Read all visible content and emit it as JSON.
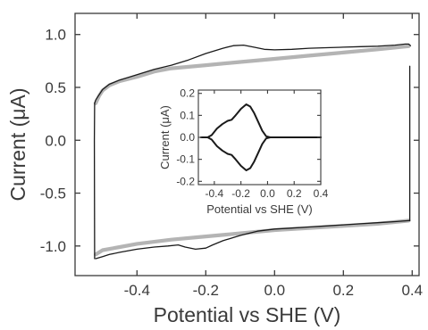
{
  "chart_data": [
    {
      "type": "line",
      "xlabel": "Potential vs SHE (V)",
      "ylabel": "Current (μA)",
      "xlim": [
        -0.58,
        0.42
      ],
      "ylim": [
        -1.28,
        1.2
      ],
      "xticks": [
        -0.4,
        -0.2,
        0.0,
        0.2,
        0.4
      ],
      "xtick_labels": [
        "-0.4",
        "-0.2",
        "0.0",
        "0.2",
        "0.4"
      ],
      "yticks": [
        -1.0,
        -0.5,
        0.0,
        0.5,
        1.0
      ],
      "ytick_labels": [
        "-1.0",
        "-0.5",
        "0.0",
        "0.5",
        "1.0"
      ],
      "grid": false,
      "series": [
        {
          "color": "#b4b4b4",
          "segments": [
            [
              [
                -0.52,
                0.35
              ],
              [
                -0.51,
                0.42
              ],
              [
                -0.5,
                0.47
              ],
              [
                -0.48,
                0.52
              ],
              [
                -0.45,
                0.56
              ],
              [
                -0.4,
                0.6
              ],
              [
                -0.35,
                0.65
              ],
              [
                -0.3,
                0.68
              ],
              [
                -0.2,
                0.71
              ],
              [
                -0.1,
                0.74
              ],
              [
                0.0,
                0.77
              ],
              [
                0.1,
                0.8
              ],
              [
                0.2,
                0.83
              ],
              [
                0.3,
                0.86
              ],
              [
                0.39,
                0.89
              ]
            ],
            [
              [
                0.39,
                -0.76
              ],
              [
                0.3,
                -0.79
              ],
              [
                0.2,
                -0.81
              ],
              [
                0.1,
                -0.83
              ],
              [
                0.0,
                -0.85
              ],
              [
                -0.1,
                -0.88
              ],
              [
                -0.2,
                -0.91
              ],
              [
                -0.3,
                -0.94
              ],
              [
                -0.4,
                -0.98
              ],
              [
                -0.45,
                -1.01
              ],
              [
                -0.5,
                -1.04
              ],
              [
                -0.52,
                -1.08
              ]
            ]
          ]
        },
        {
          "color": "#1a1a1a",
          "segments": [
            [
              [
                -0.523,
                0.35
              ],
              [
                -0.52,
                0.38
              ],
              [
                -0.51,
                0.43
              ],
              [
                -0.5,
                0.48
              ],
              [
                -0.48,
                0.53
              ],
              [
                -0.45,
                0.57
              ],
              [
                -0.4,
                0.62
              ],
              [
                -0.35,
                0.67
              ],
              [
                -0.3,
                0.71
              ],
              [
                -0.25,
                0.76
              ],
              [
                -0.2,
                0.82
              ],
              [
                -0.15,
                0.87
              ],
              [
                -0.12,
                0.895
              ],
              [
                -0.09,
                0.9
              ],
              [
                -0.06,
                0.88
              ],
              [
                -0.03,
                0.86
              ],
              [
                0.0,
                0.855
              ],
              [
                0.05,
                0.86
              ],
              [
                0.1,
                0.87
              ],
              [
                0.15,
                0.875
              ],
              [
                0.2,
                0.88
              ],
              [
                0.25,
                0.885
              ],
              [
                0.3,
                0.89
              ],
              [
                0.35,
                0.9
              ],
              [
                0.38,
                0.91
              ],
              [
                0.39,
                0.91
              ],
              [
                0.395,
                0.895
              ]
            ],
            [
              [
                0.393,
                -0.76
              ],
              [
                0.39,
                -0.76
              ],
              [
                0.35,
                -0.77
              ],
              [
                0.3,
                -0.78
              ],
              [
                0.25,
                -0.79
              ],
              [
                0.2,
                -0.8
              ],
              [
                0.15,
                -0.81
              ],
              [
                0.1,
                -0.82
              ],
              [
                0.05,
                -0.83
              ],
              [
                0.0,
                -0.84
              ],
              [
                -0.05,
                -0.86
              ],
              [
                -0.1,
                -0.9
              ],
              [
                -0.15,
                -0.95
              ],
              [
                -0.18,
                -0.99
              ],
              [
                -0.2,
                -1.02
              ],
              [
                -0.23,
                -1.03
              ],
              [
                -0.26,
                -1.01
              ],
              [
                -0.28,
                -0.99
              ],
              [
                -0.31,
                -1.0
              ],
              [
                -0.35,
                -1.01
              ],
              [
                -0.4,
                -1.03
              ],
              [
                -0.45,
                -1.06
              ],
              [
                -0.48,
                -1.08
              ],
              [
                -0.5,
                -1.1
              ],
              [
                -0.52,
                -1.12
              ]
            ]
          ]
        },
        {
          "color": "#1a1a1a",
          "segments": [
            [
              [
                -0.523,
                -1.12
              ],
              [
                -0.524,
                0.0
              ],
              [
                -0.523,
                0.35
              ]
            ],
            [
              [
                0.393,
                0.7
              ],
              [
                0.393,
                -0.76
              ]
            ]
          ]
        }
      ]
    },
    {
      "type": "line",
      "xlabel": "Potential vs SHE (V)",
      "ylabel": "Current (μA)",
      "xlim": [
        -0.52,
        0.4
      ],
      "ylim": [
        -0.215,
        0.215
      ],
      "xticks": [
        -0.4,
        -0.2,
        0.0,
        0.2,
        0.4
      ],
      "xtick_labels": [
        "-0.4",
        "-0.2",
        "0.0",
        "0.2",
        "0.4"
      ],
      "yticks": [
        -0.2,
        -0.1,
        0.0,
        0.1,
        0.2
      ],
      "ytick_labels": [
        "-0.2",
        "-0.1",
        "0.0",
        "0.1",
        "0.2"
      ],
      "grid": false,
      "series": [
        {
          "color": "#1a1a1a",
          "segments": [
            [
              [
                -0.5,
                0.0
              ],
              [
                -0.45,
                0.0
              ],
              [
                -0.42,
                0.01
              ],
              [
                -0.38,
                0.04
              ],
              [
                -0.34,
                0.06
              ],
              [
                -0.3,
                0.075
              ],
              [
                -0.27,
                0.08
              ],
              [
                -0.24,
                0.1
              ],
              [
                -0.2,
                0.13
              ],
              [
                -0.16,
                0.15
              ],
              [
                -0.13,
                0.14
              ],
              [
                -0.1,
                0.11
              ],
              [
                -0.07,
                0.07
              ],
              [
                -0.04,
                0.03
              ],
              [
                -0.01,
                0.005
              ],
              [
                0.02,
                0.0
              ],
              [
                0.1,
                0.0
              ],
              [
                0.2,
                0.0
              ],
              [
                0.3,
                0.0
              ],
              [
                0.4,
                0.0
              ]
            ],
            [
              [
                0.4,
                0.0
              ],
              [
                0.3,
                0.0
              ],
              [
                0.2,
                0.0
              ],
              [
                0.1,
                0.0
              ],
              [
                0.02,
                0.0
              ],
              [
                -0.01,
                -0.005
              ],
              [
                -0.04,
                -0.03
              ],
              [
                -0.07,
                -0.07
              ],
              [
                -0.1,
                -0.11
              ],
              [
                -0.13,
                -0.14
              ],
              [
                -0.16,
                -0.15
              ],
              [
                -0.2,
                -0.13
              ],
              [
                -0.24,
                -0.1
              ],
              [
                -0.27,
                -0.08
              ],
              [
                -0.3,
                -0.075
              ],
              [
                -0.34,
                -0.06
              ],
              [
                -0.38,
                -0.04
              ],
              [
                -0.42,
                -0.01
              ],
              [
                -0.45,
                0.0
              ],
              [
                -0.5,
                0.0
              ]
            ]
          ]
        }
      ]
    }
  ]
}
